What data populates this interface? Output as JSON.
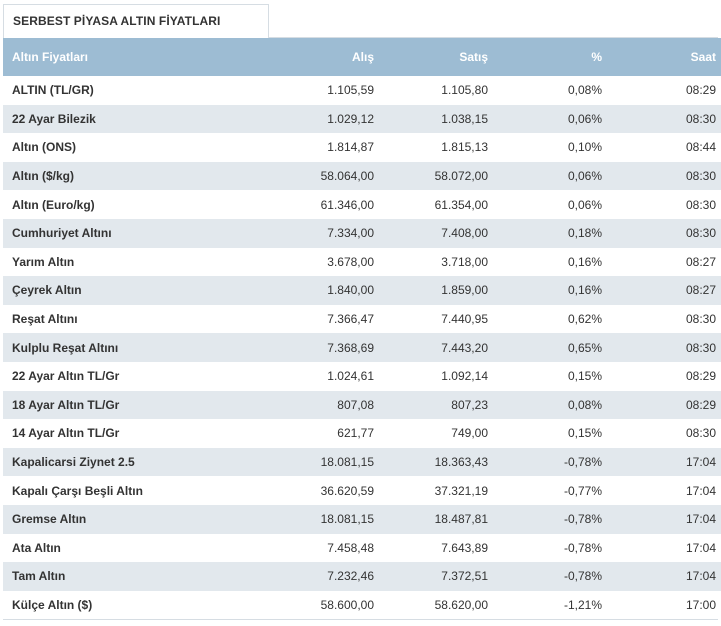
{
  "tab": {
    "title": "SERBEST PİYASA ALTIN FİYATLARI"
  },
  "table": {
    "headers": {
      "name": "Altın Fiyatları",
      "buy": "Alış",
      "sell": "Satış",
      "pct": "%",
      "time": "Saat"
    },
    "rows": [
      {
        "name": "ALTIN (TL/GR)",
        "buy": "1.105,59",
        "sell": "1.105,80",
        "pct": "0,08%",
        "time": "08:29"
      },
      {
        "name": "22 Ayar Bilezik",
        "buy": "1.029,12",
        "sell": "1.038,15",
        "pct": "0,06%",
        "time": "08:30"
      },
      {
        "name": "Altın (ONS)",
        "buy": "1.814,87",
        "sell": "1.815,13",
        "pct": "0,10%",
        "time": "08:44"
      },
      {
        "name": "Altın ($/kg)",
        "buy": "58.064,00",
        "sell": "58.072,00",
        "pct": "0,06%",
        "time": "08:30"
      },
      {
        "name": "Altın (Euro/kg)",
        "buy": "61.346,00",
        "sell": "61.354,00",
        "pct": "0,06%",
        "time": "08:30"
      },
      {
        "name": "Cumhuriyet Altını",
        "buy": "7.334,00",
        "sell": "7.408,00",
        "pct": "0,18%",
        "time": "08:30"
      },
      {
        "name": "Yarım Altın",
        "buy": "3.678,00",
        "sell": "3.718,00",
        "pct": "0,16%",
        "time": "08:27"
      },
      {
        "name": "Çeyrek Altın",
        "buy": "1.840,00",
        "sell": "1.859,00",
        "pct": "0,16%",
        "time": "08:27"
      },
      {
        "name": "Reşat Altını",
        "buy": "7.366,47",
        "sell": "7.440,95",
        "pct": "0,62%",
        "time": "08:30"
      },
      {
        "name": "Kulplu Reşat Altını",
        "buy": "7.368,69",
        "sell": "7.443,20",
        "pct": "0,65%",
        "time": "08:30"
      },
      {
        "name": "22 Ayar Altın TL/Gr",
        "buy": "1.024,61",
        "sell": "1.092,14",
        "pct": "0,15%",
        "time": "08:29"
      },
      {
        "name": "18 Ayar Altın TL/Gr",
        "buy": "807,08",
        "sell": "807,23",
        "pct": "0,08%",
        "time": "08:29"
      },
      {
        "name": "14 Ayar Altın TL/Gr",
        "buy": "621,77",
        "sell": "749,00",
        "pct": "0,15%",
        "time": "08:30"
      },
      {
        "name": "Kapalicarsi Ziynet 2.5",
        "buy": "18.081,15",
        "sell": "18.363,43",
        "pct": "-0,78%",
        "time": "17:04"
      },
      {
        "name": "Kapalı Çarşı Beşli Altın",
        "buy": "36.620,59",
        "sell": "37.321,19",
        "pct": "-0,77%",
        "time": "17:04"
      },
      {
        "name": "Gremse Altın",
        "buy": "18.081,15",
        "sell": "18.487,81",
        "pct": "-0,78%",
        "time": "17:04"
      },
      {
        "name": "Ata Altın",
        "buy": "7.458,48",
        "sell": "7.643,89",
        "pct": "-0,78%",
        "time": "17:04"
      },
      {
        "name": "Tam Altın",
        "buy": "7.232,46",
        "sell": "7.372,51",
        "pct": "-0,78%",
        "time": "17:04"
      },
      {
        "name": "Külçe Altın ($)",
        "buy": "58.600,00",
        "sell": "58.620,00",
        "pct": "-1,21%",
        "time": "17:00"
      }
    ]
  }
}
